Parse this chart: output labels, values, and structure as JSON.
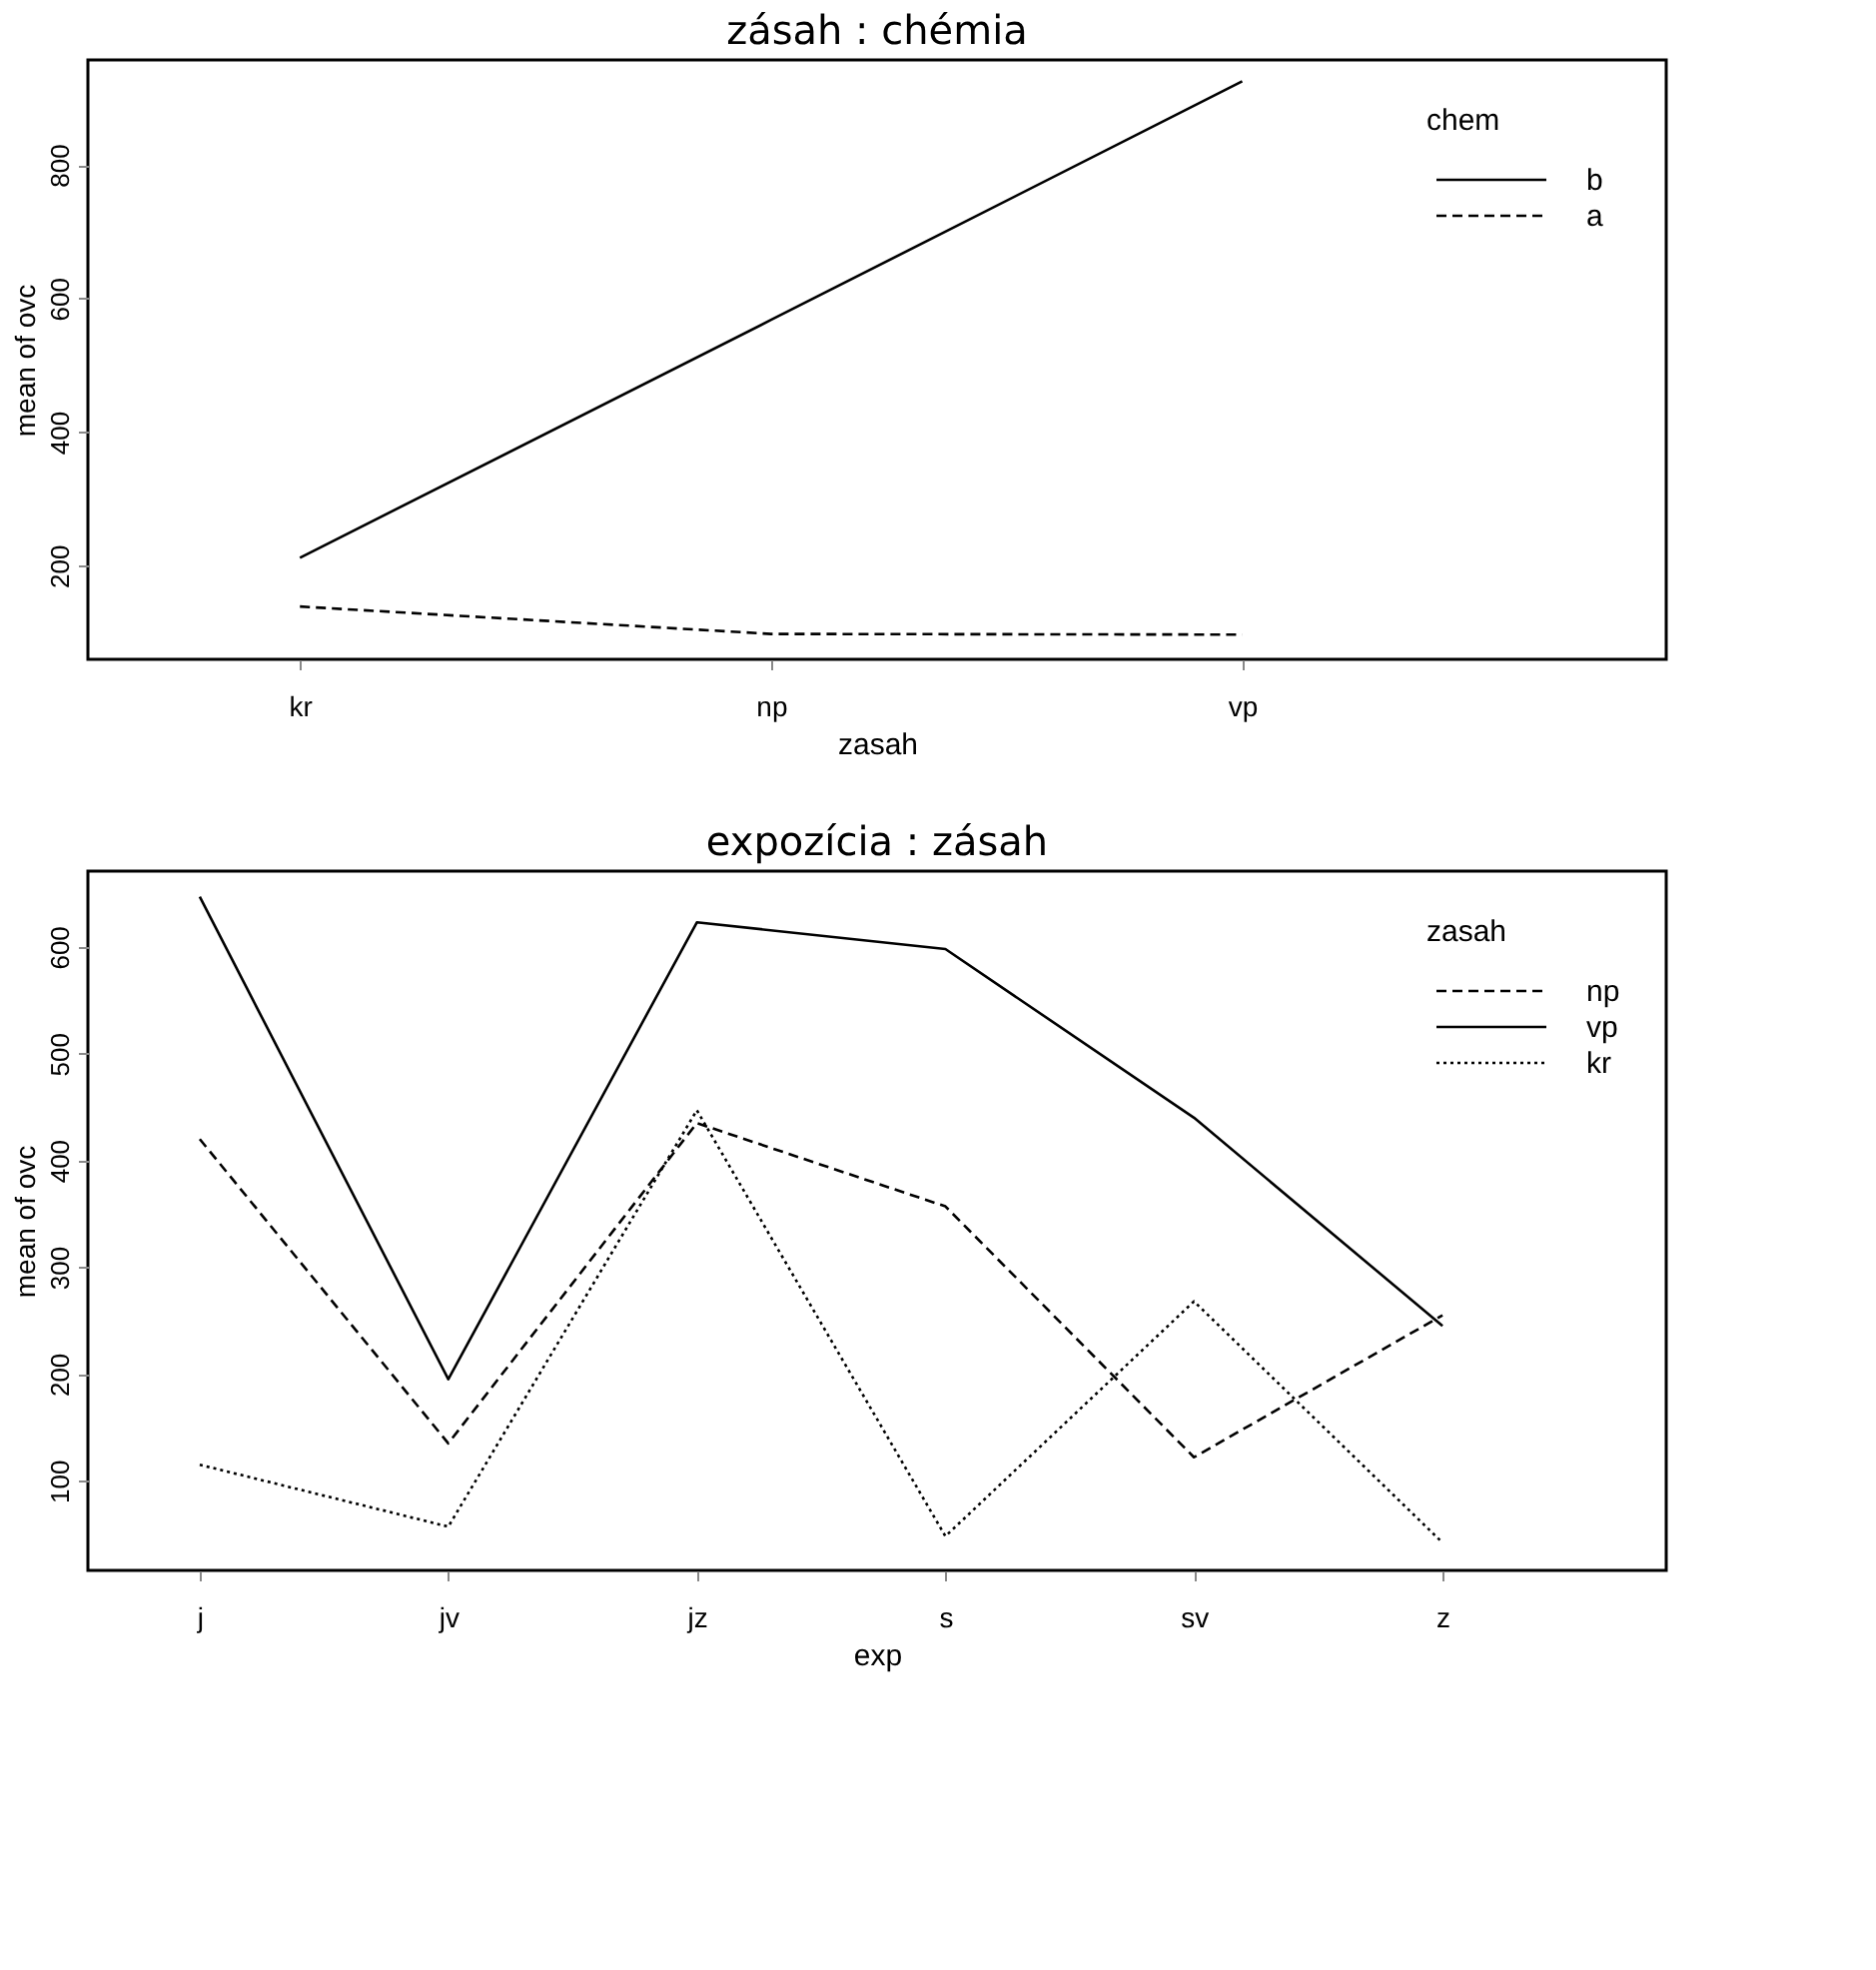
{
  "chart_data": [
    {
      "type": "line",
      "title": "zásah : chémia",
      "xlabel": "zasah",
      "ylabel": "mean of ovc",
      "legend_title": "chem",
      "legend": "top right",
      "grid": false,
      "categories": [
        "kr",
        "np",
        "vp"
      ],
      "ylim": [
        60,
        957
      ],
      "yticks": [
        200,
        400,
        600,
        800
      ],
      "series": [
        {
          "name": "b",
          "color": "#000000",
          "line_style": "solid",
          "values": [
            212,
            568,
            925
          ]
        },
        {
          "name": "a",
          "color": "#000000",
          "line_style": "dashed",
          "values": [
            139,
            98,
            97
          ]
        }
      ]
    },
    {
      "type": "line",
      "title": "expozícia : zásah",
      "xlabel": "exp",
      "ylabel": "mean of ovc",
      "legend_title": "zasah",
      "legend": "top right",
      "grid": false,
      "categories": [
        "j",
        "jv",
        "jz",
        "s",
        "sv",
        "z"
      ],
      "ylim": [
        16,
        671
      ],
      "yticks": [
        100,
        200,
        300,
        400,
        500,
        600
      ],
      "series": [
        {
          "name": "np",
          "color": "#000000",
          "line_style": "dashed",
          "values": [
            420,
            135,
            435,
            357,
            122,
            255
          ]
        },
        {
          "name": "vp",
          "color": "#000000",
          "line_style": "solid",
          "values": [
            647,
            195,
            623,
            598,
            440,
            245
          ]
        },
        {
          "name": "kr",
          "color": "#000000",
          "line_style": "dotted",
          "values": [
            115,
            57,
            447,
            48,
            268,
            42
          ]
        }
      ]
    }
  ]
}
